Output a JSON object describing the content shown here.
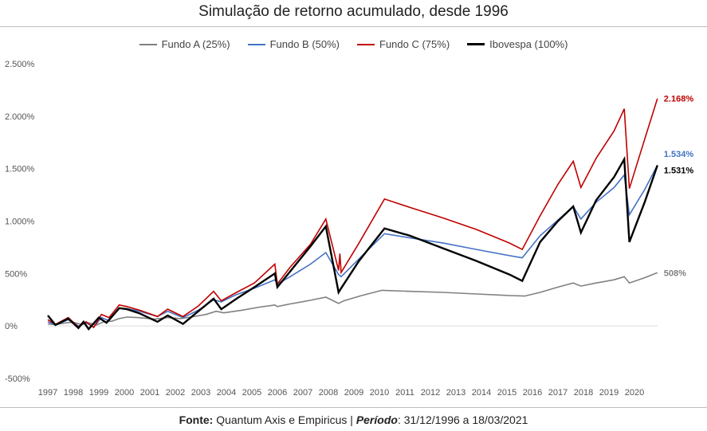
{
  "title": "Simulação de retorno acumulado, desde 1996",
  "source": {
    "fonte_label": "Fonte:",
    "fonte_text": "Quantum Axis e Empiricus",
    "separator": "|",
    "periodo_label": "Período",
    "periodo_text": ": 31/12/1996 a 18/03/2021"
  },
  "chart_data": {
    "type": "line",
    "title": "Simulação de retorno acumulado, desde 1996",
    "xlabel": "",
    "ylabel": "",
    "xlim": [
      1997,
      2021.2
    ],
    "ylim": [
      -500,
      2500
    ],
    "yticks": [
      -500,
      0,
      500,
      1000,
      1500,
      2000,
      2500
    ],
    "ytick_labels": [
      "-500%",
      "0%",
      "500%",
      "1.000%",
      "1.500%",
      "2.000%",
      "2.500%"
    ],
    "ytick_colors": [
      "#c00000",
      "#555555",
      "#555555",
      "#555555",
      "#555555",
      "#555555",
      "#555555"
    ],
    "xticks": [
      1997,
      1998,
      1999,
      2000,
      2001,
      2002,
      2003,
      2004,
      2005,
      2006,
      2007,
      2008,
      2009,
      2010,
      2011,
      2012,
      2013,
      2014,
      2015,
      2016,
      2017,
      2018,
      2019,
      2020
    ],
    "xtick_labels": [
      "1997",
      "1998",
      "1999",
      "2000",
      "2001",
      "2002",
      "2003",
      "2004",
      "2005",
      "2006",
      "2007",
      "2008",
      "2009",
      "2010",
      "2011",
      "2012",
      "2013",
      "2014",
      "2015",
      "2016",
      "2017",
      "2018",
      "2019",
      "2020"
    ],
    "grid": false,
    "legend_position": "top-center",
    "series": [
      {
        "name": "Fundo A (25%)",
        "color": "#808080",
        "width": 1.6,
        "end_label": "508%",
        "points": [
          [
            1997.0,
            20
          ],
          [
            1997.3,
            12
          ],
          [
            1997.7,
            30
          ],
          [
            1998.0,
            35
          ],
          [
            1998.3,
            15
          ],
          [
            1998.6,
            30
          ],
          [
            1998.9,
            10
          ],
          [
            1999.2,
            40
          ],
          [
            1999.5,
            45
          ],
          [
            1999.8,
            70
          ],
          [
            2000.1,
            85
          ],
          [
            2000.5,
            80
          ],
          [
            2001.2,
            65
          ],
          [
            2001.7,
            80
          ],
          [
            2002.2,
            70
          ],
          [
            2002.6,
            85
          ],
          [
            2003.2,
            110
          ],
          [
            2003.6,
            140
          ],
          [
            2003.9,
            125
          ],
          [
            2004.6,
            150
          ],
          [
            2005.3,
            180
          ],
          [
            2005.9,
            200
          ],
          [
            2006.0,
            185
          ],
          [
            2006.5,
            210
          ],
          [
            2007.3,
            245
          ],
          [
            2007.9,
            275
          ],
          [
            2008.4,
            215
          ],
          [
            2008.6,
            240
          ],
          [
            2009.3,
            290
          ],
          [
            2010.1,
            340
          ],
          [
            2011.2,
            330
          ],
          [
            2012.5,
            320
          ],
          [
            2013.8,
            305
          ],
          [
            2015.1,
            290
          ],
          [
            2015.7,
            285
          ],
          [
            2016.3,
            320
          ],
          [
            2017.0,
            370
          ],
          [
            2017.6,
            410
          ],
          [
            2017.9,
            380
          ],
          [
            2018.5,
            410
          ],
          [
            2019.2,
            440
          ],
          [
            2019.6,
            470
          ],
          [
            2019.8,
            410
          ],
          [
            2020.4,
            460
          ],
          [
            2020.9,
            508
          ]
        ]
      },
      {
        "name": "Fundo B (50%)",
        "color": "#4472c4",
        "width": 1.6,
        "end_label": "1.534%",
        "points": [
          [
            1997.0,
            40
          ],
          [
            1997.3,
            10
          ],
          [
            1997.8,
            60
          ],
          [
            1998.2,
            0
          ],
          [
            1998.5,
            30
          ],
          [
            1998.8,
            -10
          ],
          [
            1999.1,
            80
          ],
          [
            1999.4,
            50
          ],
          [
            1999.8,
            170
          ],
          [
            2000.1,
            165
          ],
          [
            2000.6,
            140
          ],
          [
            2001.3,
            90
          ],
          [
            2001.7,
            140
          ],
          [
            2002.3,
            80
          ],
          [
            2002.9,
            150
          ],
          [
            2003.5,
            250
          ],
          [
            2003.8,
            230
          ],
          [
            2004.4,
            300
          ],
          [
            2005.1,
            360
          ],
          [
            2005.9,
            440
          ],
          [
            2006.0,
            400
          ],
          [
            2006.5,
            470
          ],
          [
            2007.3,
            590
          ],
          [
            2007.9,
            700
          ],
          [
            2008.4,
            490
          ],
          [
            2008.5,
            470
          ],
          [
            2009.2,
            640
          ],
          [
            2010.2,
            880
          ],
          [
            2011.2,
            840
          ],
          [
            2012.5,
            790
          ],
          [
            2013.8,
            730
          ],
          [
            2015.1,
            670
          ],
          [
            2015.6,
            650
          ],
          [
            2016.3,
            860
          ],
          [
            2017.0,
            1010
          ],
          [
            2017.6,
            1140
          ],
          [
            2017.9,
            1020
          ],
          [
            2018.5,
            1180
          ],
          [
            2019.2,
            1320
          ],
          [
            2019.6,
            1440
          ],
          [
            2019.8,
            1060
          ],
          [
            2020.4,
            1300
          ],
          [
            2020.9,
            1534
          ]
        ]
      },
      {
        "name": "Fundo C (75%)",
        "color": "#c00000",
        "width": 1.6,
        "end_label": "2.168%",
        "points": [
          [
            1997.0,
            60
          ],
          [
            1997.3,
            15
          ],
          [
            1997.8,
            80
          ],
          [
            1998.2,
            -10
          ],
          [
            1998.5,
            40
          ],
          [
            1998.8,
            -15
          ],
          [
            1999.1,
            110
          ],
          [
            1999.4,
            80
          ],
          [
            1999.8,
            200
          ],
          [
            2000.1,
            185
          ],
          [
            2000.6,
            150
          ],
          [
            2001.3,
            90
          ],
          [
            2001.7,
            160
          ],
          [
            2002.3,
            90
          ],
          [
            2002.9,
            190
          ],
          [
            2003.5,
            330
          ],
          [
            2003.8,
            240
          ],
          [
            2004.4,
            320
          ],
          [
            2005.1,
            410
          ],
          [
            2005.9,
            590
          ],
          [
            2006.0,
            400
          ],
          [
            2006.5,
            560
          ],
          [
            2007.3,
            780
          ],
          [
            2007.9,
            1020
          ],
          [
            2008.4,
            530
          ],
          [
            2008.45,
            690
          ],
          [
            2008.5,
            510
          ],
          [
            2009.2,
            790
          ],
          [
            2010.2,
            1210
          ],
          [
            2011.2,
            1130
          ],
          [
            2012.5,
            1030
          ],
          [
            2013.8,
            920
          ],
          [
            2015.1,
            790
          ],
          [
            2015.6,
            730
          ],
          [
            2016.3,
            1050
          ],
          [
            2017.0,
            1350
          ],
          [
            2017.6,
            1570
          ],
          [
            2017.9,
            1320
          ],
          [
            2018.5,
            1600
          ],
          [
            2019.2,
            1860
          ],
          [
            2019.6,
            2070
          ],
          [
            2019.8,
            1310
          ],
          [
            2020.4,
            1780
          ],
          [
            2020.9,
            2168
          ]
        ]
      },
      {
        "name": "Ibovespa (100%)",
        "color": "#000000",
        "width": 2.4,
        "end_label": "1.531%",
        "points": [
          [
            1997.0,
            100
          ],
          [
            1997.3,
            10
          ],
          [
            1997.8,
            70
          ],
          [
            1998.2,
            -20
          ],
          [
            1998.4,
            40
          ],
          [
            1998.6,
            -30
          ],
          [
            1999.0,
            80
          ],
          [
            1999.3,
            30
          ],
          [
            1999.8,
            170
          ],
          [
            2000.1,
            160
          ],
          [
            2000.6,
            120
          ],
          [
            2001.3,
            40
          ],
          [
            2001.7,
            100
          ],
          [
            2002.3,
            20
          ],
          [
            2002.9,
            140
          ],
          [
            2003.5,
            260
          ],
          [
            2003.8,
            160
          ],
          [
            2004.4,
            260
          ],
          [
            2005.1,
            370
          ],
          [
            2005.9,
            500
          ],
          [
            2006.0,
            370
          ],
          [
            2006.5,
            520
          ],
          [
            2007.3,
            760
          ],
          [
            2007.9,
            950
          ],
          [
            2008.4,
            320
          ],
          [
            2008.5,
            360
          ],
          [
            2009.2,
            620
          ],
          [
            2010.2,
            930
          ],
          [
            2011.2,
            860
          ],
          [
            2012.5,
            740
          ],
          [
            2013.8,
            620
          ],
          [
            2015.1,
            490
          ],
          [
            2015.6,
            430
          ],
          [
            2016.3,
            800
          ],
          [
            2017.0,
            1000
          ],
          [
            2017.6,
            1140
          ],
          [
            2017.9,
            890
          ],
          [
            2018.5,
            1200
          ],
          [
            2019.2,
            1420
          ],
          [
            2019.6,
            1590
          ],
          [
            2019.8,
            800
          ],
          [
            2020.4,
            1180
          ],
          [
            2020.9,
            1531
          ]
        ]
      }
    ]
  }
}
